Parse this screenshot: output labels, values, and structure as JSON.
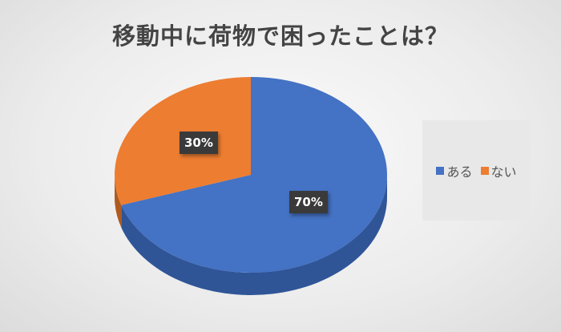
{
  "chart_data": {
    "type": "pie",
    "title": "移動中に荷物で困ったことは？",
    "categories": [
      "ある",
      "ない"
    ],
    "values": [
      70,
      30
    ],
    "data_labels": [
      "70%",
      "30%"
    ],
    "colors": [
      "#4472c4",
      "#ed7d31"
    ],
    "side_colors": [
      "#2f5597",
      "#ae5a21"
    ],
    "style": "3d",
    "legend_position": "right"
  }
}
